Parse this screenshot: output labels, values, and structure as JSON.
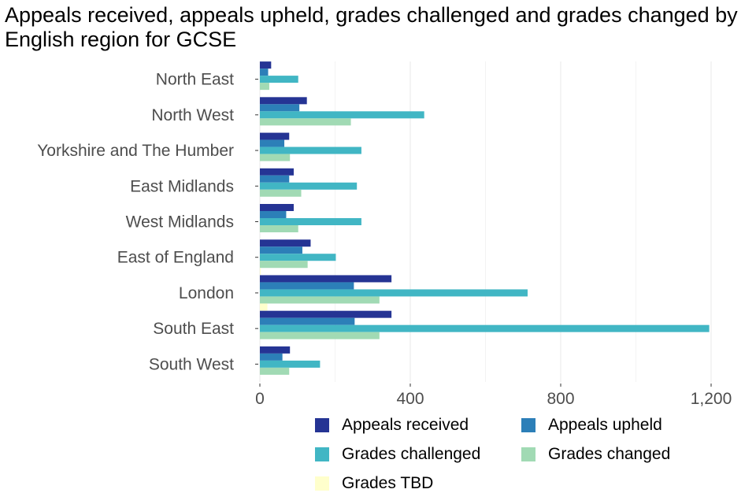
{
  "chart_data": {
    "type": "bar",
    "orientation": "horizontal",
    "title": "Appeals received, appeals upheld, grades challenged and grades changed by English region for GCSE",
    "xlabel": "",
    "ylabel": "",
    "xlim": [
      0,
      1260
    ],
    "x_ticks": [
      0,
      400,
      800,
      1200
    ],
    "x_tick_labels": [
      "0",
      "400",
      "800",
      "1,200"
    ],
    "grid": "vertical",
    "legend_position": "bottom",
    "categories": [
      "North East",
      "North West",
      "Yorkshire and The Humber",
      "East Midlands",
      "West Midlands",
      "East of England",
      "London",
      "South East",
      "South West"
    ],
    "series": [
      {
        "name": "Appeals received",
        "color": "#253494",
        "values": [
          30,
          125,
          78,
          90,
          90,
          135,
          350,
          350,
          80
        ]
      },
      {
        "name": "Appeals upheld",
        "color": "#2c7fb8",
        "values": [
          22,
          105,
          65,
          78,
          70,
          113,
          250,
          252,
          60
        ]
      },
      {
        "name": "Grades challenged",
        "color": "#41b6c4",
        "values": [
          102,
          437,
          270,
          258,
          270,
          202,
          712,
          1195,
          160
        ]
      },
      {
        "name": "Grades changed",
        "color": "#a1dab4",
        "values": [
          25,
          242,
          80,
          110,
          102,
          127,
          318,
          318,
          78
        ]
      },
      {
        "name": "Grades TBD",
        "color": "#ffffcc",
        "values": [
          0,
          0,
          0,
          0,
          0,
          2,
          20,
          0,
          0
        ]
      }
    ]
  }
}
